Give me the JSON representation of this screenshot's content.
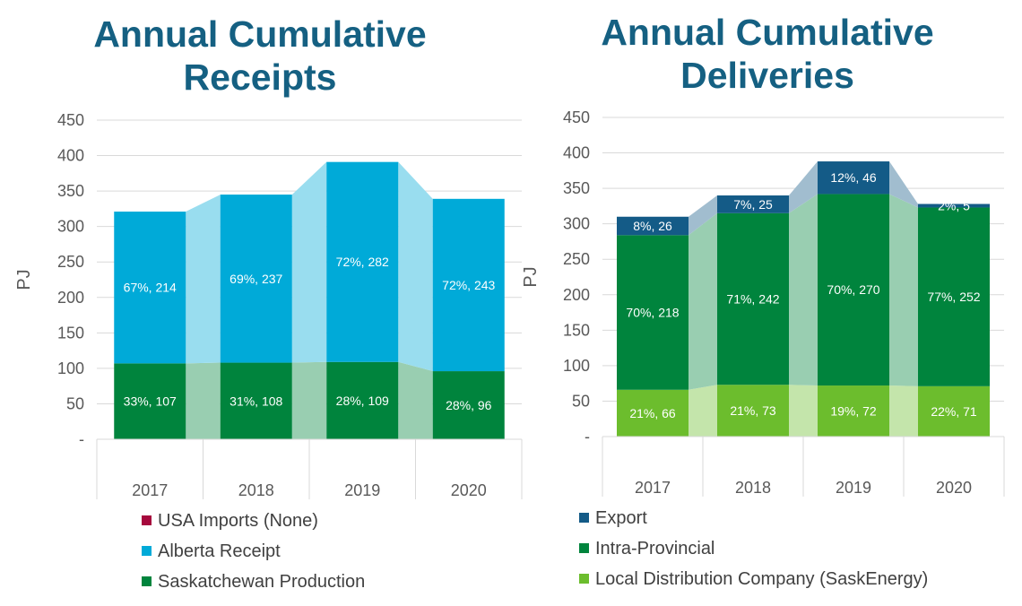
{
  "chart_data": [
    {
      "type": "bar",
      "title": "Annual Cumulative Receipts",
      "title_lines": [
        "Annual Cumulative",
        "Receipts"
      ],
      "ylabel": "PJ",
      "ylim": [
        0,
        450
      ],
      "yticks": [
        "-",
        "50",
        "100",
        "150",
        "200",
        "250",
        "300",
        "350",
        "400",
        "450"
      ],
      "categories": [
        "2017",
        "2018",
        "2019",
        "2020"
      ],
      "stacked": true,
      "series": [
        {
          "name": "Saskatchewan Production",
          "color": "#00843D",
          "values": [
            107,
            108,
            109,
            96
          ],
          "labels": [
            "33%, 107",
            "31%, 108",
            "28%, 109",
            "28%, 96"
          ]
        },
        {
          "name": "Alberta Receipt",
          "color": "#00AAD8",
          "values": [
            214,
            237,
            282,
            243
          ],
          "labels": [
            "67%, 214",
            "69%, 237",
            "72%, 282",
            "72%, 243"
          ]
        },
        {
          "name": "USA Imports (None)",
          "color": "#A6093D",
          "values": [
            0,
            0,
            0,
            0
          ],
          "labels": [
            "",
            "",
            "",
            ""
          ]
        }
      ],
      "legend": [
        "USA Imports (None)",
        "Alberta Receipt",
        "Saskatchewan Production"
      ],
      "legend_position": "bottom"
    },
    {
      "type": "bar",
      "title": "Annual Cumulative Deliveries",
      "title_lines": [
        "Annual Cumulative",
        "Deliveries"
      ],
      "ylabel": "PJ",
      "ylim": [
        0,
        450
      ],
      "yticks": [
        "-",
        "50",
        "100",
        "150",
        "200",
        "250",
        "300",
        "350",
        "400",
        "450"
      ],
      "categories": [
        "2017",
        "2018",
        "2019",
        "2020"
      ],
      "stacked": true,
      "series": [
        {
          "name": "Local Distribution Company (SaskEnergy)",
          "color": "#6CBD2D",
          "values": [
            66,
            73,
            72,
            71
          ],
          "labels": [
            "21%, 66",
            "21%, 73",
            "19%, 72",
            "22%, 71"
          ]
        },
        {
          "name": "Intra-Provincial",
          "color": "#00843D",
          "values": [
            218,
            242,
            270,
            252
          ],
          "labels": [
            "70%, 218",
            "71%, 242",
            "70%, 270",
            "77%, 252"
          ]
        },
        {
          "name": "Export",
          "color": "#145B87",
          "values": [
            26,
            25,
            46,
            5
          ],
          "labels": [
            "8%, 26",
            "7%, 25",
            "12%, 46",
            "2%, 5"
          ]
        }
      ],
      "legend": [
        "Export",
        "Intra-Provincial",
        "Local Distribution Company (SaskEnergy)"
      ],
      "legend_position": "bottom"
    }
  ]
}
